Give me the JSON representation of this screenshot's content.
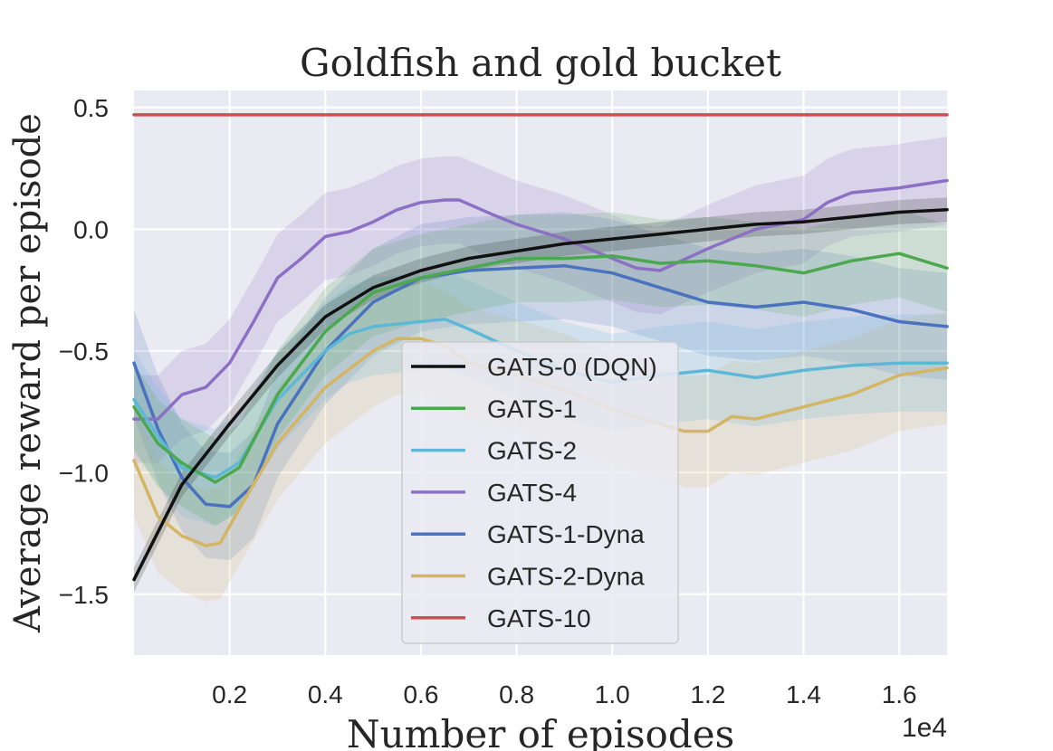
{
  "chart_data": {
    "type": "line",
    "title": "Goldfish and gold bucket",
    "xlabel": "Number of episodes",
    "ylabel": "Average reward per episode",
    "x_offset_label": "1e4",
    "xlim": [
      0.0,
      1.7
    ],
    "ylim": [
      -1.75,
      0.57
    ],
    "xticks": [
      0.2,
      0.4,
      0.6,
      0.8,
      1.0,
      1.2,
      1.4,
      1.6
    ],
    "xtick_labels": [
      "0.2",
      "0.4",
      "0.6",
      "0.8",
      "1.0",
      "1.2",
      "1.4",
      "1.6"
    ],
    "yticks": [
      0.5,
      0.0,
      -0.5,
      -1.0,
      -1.5
    ],
    "ytick_labels": [
      "0.5",
      "0.0",
      "−0.5",
      "−1.0",
      "−1.5"
    ],
    "grid": true,
    "legend_position": "lower-center",
    "series": [
      {
        "name": "GATS-0 (DQN)",
        "color": "#111111",
        "x": [
          0.0,
          0.1,
          0.2,
          0.3,
          0.4,
          0.5,
          0.6,
          0.7,
          0.8,
          0.9,
          1.0,
          1.1,
          1.2,
          1.3,
          1.4,
          1.5,
          1.6,
          1.7
        ],
        "y": [
          -1.44,
          -1.05,
          -0.8,
          -0.56,
          -0.36,
          -0.24,
          -0.17,
          -0.12,
          -0.09,
          -0.06,
          -0.04,
          -0.02,
          0.0,
          0.02,
          0.03,
          0.05,
          0.07,
          0.08
        ],
        "band": 0.05
      },
      {
        "name": "GATS-1",
        "color": "#4ca84f",
        "x": [
          0.0,
          0.05,
          0.1,
          0.17,
          0.22,
          0.3,
          0.4,
          0.5,
          0.6,
          0.7,
          0.8,
          0.9,
          1.0,
          1.1,
          1.2,
          1.3,
          1.4,
          1.5,
          1.6,
          1.7
        ],
        "y": [
          -0.73,
          -0.88,
          -0.96,
          -1.04,
          -0.98,
          -0.68,
          -0.42,
          -0.26,
          -0.2,
          -0.16,
          -0.12,
          -0.12,
          -0.11,
          -0.14,
          -0.13,
          -0.15,
          -0.18,
          -0.13,
          -0.1,
          -0.16
        ],
        "band": 0.18
      },
      {
        "name": "GATS-2",
        "color": "#5cb8d6",
        "x": [
          0.0,
          0.05,
          0.1,
          0.17,
          0.22,
          0.3,
          0.4,
          0.45,
          0.5,
          0.6,
          0.65,
          0.7,
          0.8,
          0.9,
          1.0,
          1.1,
          1.2,
          1.3,
          1.4,
          1.5,
          1.6,
          1.7
        ],
        "y": [
          -0.7,
          -0.85,
          -0.98,
          -1.02,
          -0.96,
          -0.7,
          -0.5,
          -0.43,
          -0.4,
          -0.38,
          -0.37,
          -0.41,
          -0.5,
          -0.58,
          -0.63,
          -0.6,
          -0.58,
          -0.61,
          -0.58,
          -0.56,
          -0.55,
          -0.55
        ],
        "band": 0.2
      },
      {
        "name": "GATS-4",
        "color": "#8c70c4",
        "x": [
          0.0,
          0.05,
          0.1,
          0.15,
          0.2,
          0.25,
          0.3,
          0.35,
          0.4,
          0.45,
          0.5,
          0.55,
          0.6,
          0.65,
          0.68,
          0.75,
          0.8,
          0.9,
          1.0,
          1.05,
          1.1,
          1.2,
          1.3,
          1.4,
          1.45,
          1.5,
          1.6,
          1.7
        ],
        "y": [
          -0.78,
          -0.78,
          -0.68,
          -0.65,
          -0.55,
          -0.38,
          -0.2,
          -0.12,
          -0.03,
          -0.01,
          0.03,
          0.08,
          0.11,
          0.12,
          0.12,
          0.06,
          0.02,
          -0.04,
          -0.12,
          -0.16,
          -0.17,
          -0.08,
          0.0,
          0.04,
          0.11,
          0.15,
          0.17,
          0.2
        ],
        "band": 0.18
      },
      {
        "name": "GATS-1-Dyna",
        "color": "#4a72be",
        "x": [
          0.0,
          0.05,
          0.1,
          0.15,
          0.2,
          0.25,
          0.3,
          0.4,
          0.5,
          0.6,
          0.7,
          0.8,
          0.9,
          1.0,
          1.1,
          1.2,
          1.3,
          1.4,
          1.5,
          1.6,
          1.7
        ],
        "y": [
          -0.55,
          -0.82,
          -1.02,
          -1.13,
          -1.14,
          -1.05,
          -0.8,
          -0.5,
          -0.3,
          -0.2,
          -0.17,
          -0.16,
          -0.15,
          -0.18,
          -0.24,
          -0.3,
          -0.32,
          -0.3,
          -0.33,
          -0.38,
          -0.4
        ],
        "band": 0.22
      },
      {
        "name": "GATS-2-Dyna",
        "color": "#d4b564",
        "x": [
          0.0,
          0.05,
          0.1,
          0.15,
          0.18,
          0.22,
          0.3,
          0.4,
          0.5,
          0.55,
          0.6,
          0.65,
          0.7,
          0.8,
          0.9,
          1.0,
          1.1,
          1.15,
          1.2,
          1.25,
          1.3,
          1.4,
          1.5,
          1.6,
          1.7
        ],
        "y": [
          -0.95,
          -1.18,
          -1.26,
          -1.3,
          -1.29,
          -1.15,
          -0.88,
          -0.65,
          -0.5,
          -0.45,
          -0.45,
          -0.48,
          -0.55,
          -0.6,
          -0.66,
          -0.74,
          -0.8,
          -0.83,
          -0.83,
          -0.77,
          -0.78,
          -0.73,
          -0.68,
          -0.6,
          -0.57
        ],
        "band": 0.23
      },
      {
        "name": "GATS-10",
        "color": "#cc4f51",
        "x": [
          0.0,
          1.7
        ],
        "y": [
          0.47,
          0.47
        ],
        "band": 0
      }
    ]
  }
}
